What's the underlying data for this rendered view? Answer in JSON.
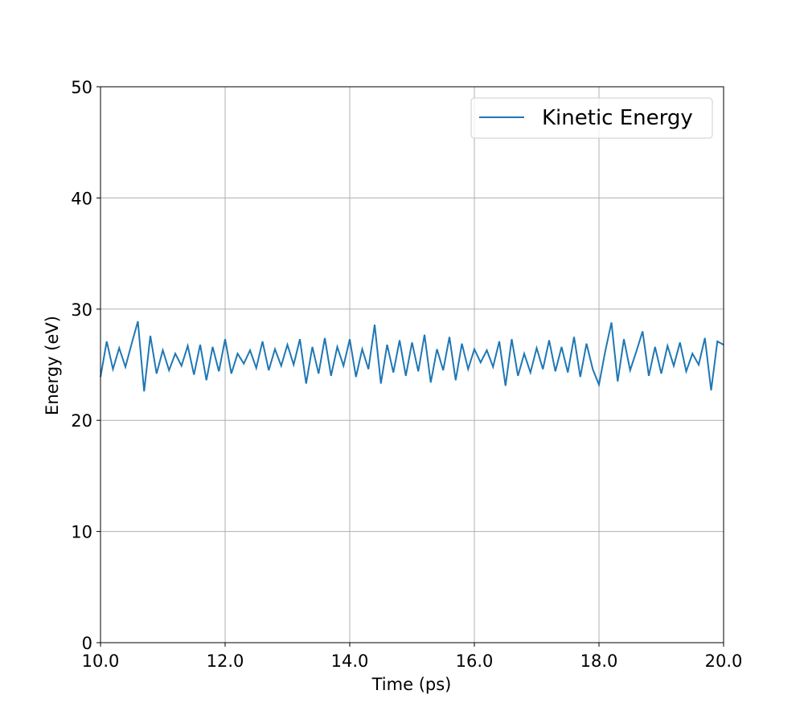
{
  "chart_data": {
    "type": "line",
    "xlabel": "Time (ps)",
    "ylabel": "Energy (eV)",
    "x": [
      10.0,
      10.1,
      10.2,
      10.3,
      10.4,
      10.5,
      10.6,
      10.7,
      10.8,
      10.9,
      11.0,
      11.1,
      11.2,
      11.3,
      11.4,
      11.5,
      11.6,
      11.7,
      11.8,
      11.9,
      12.0,
      12.1,
      12.2,
      12.3,
      12.4,
      12.5,
      12.6,
      12.7,
      12.8,
      12.9,
      13.0,
      13.1,
      13.2,
      13.3,
      13.4,
      13.5,
      13.6,
      13.7,
      13.8,
      13.9,
      14.0,
      14.1,
      14.2,
      14.3,
      14.4,
      14.5,
      14.6,
      14.7,
      14.8,
      14.9,
      15.0,
      15.1,
      15.2,
      15.3,
      15.4,
      15.5,
      15.6,
      15.7,
      15.8,
      15.9,
      16.0,
      16.1,
      16.2,
      16.3,
      16.4,
      16.5,
      16.6,
      16.7,
      16.8,
      16.9,
      17.0,
      17.1,
      17.2,
      17.3,
      17.4,
      17.5,
      17.6,
      17.7,
      17.8,
      17.9,
      18.0,
      18.1,
      18.2,
      18.3,
      18.4,
      18.5,
      18.6,
      18.7,
      18.8,
      18.9,
      19.0,
      19.1,
      19.2,
      19.3,
      19.4,
      19.5,
      19.6,
      19.7,
      19.8,
      19.9,
      20.0
    ],
    "series": [
      {
        "name": "Kinetic Energy",
        "color": "#1f77b4",
        "values": [
          23.9,
          27.1,
          24.6,
          26.5,
          24.8,
          26.9,
          28.9,
          22.6,
          27.6,
          24.2,
          26.3,
          24.5,
          26.0,
          24.9,
          26.7,
          24.1,
          26.8,
          23.6,
          26.6,
          24.4,
          27.3,
          24.2,
          26.0,
          25.1,
          26.3,
          24.7,
          27.1,
          24.5,
          26.4,
          24.9,
          26.8,
          25.0,
          27.3,
          23.3,
          26.6,
          24.2,
          27.4,
          24.0,
          26.6,
          24.9,
          27.3,
          23.9,
          26.4,
          24.6,
          28.6,
          23.3,
          26.8,
          24.3,
          27.2,
          24.0,
          27.0,
          24.4,
          27.7,
          23.4,
          26.4,
          24.5,
          27.5,
          23.6,
          26.9,
          24.6,
          26.4,
          25.2,
          26.3,
          24.8,
          27.1,
          23.1,
          27.3,
          24.0,
          26.0,
          24.3,
          26.5,
          24.6,
          27.2,
          24.4,
          26.6,
          24.3,
          27.5,
          23.9,
          26.9,
          24.6,
          23.2,
          26.2,
          28.8,
          23.5,
          27.3,
          24.5,
          26.2,
          28.0,
          24.0,
          26.6,
          24.2,
          26.7,
          24.9,
          27.0,
          24.4,
          26.0,
          25.0,
          27.4,
          22.7,
          27.1,
          26.8
        ]
      }
    ],
    "xlim": [
      10,
      20
    ],
    "xticks": [
      {
        "value": 10,
        "label": "10.0"
      },
      {
        "value": 12,
        "label": "12.0"
      },
      {
        "value": 14,
        "label": "14.0"
      },
      {
        "value": 16,
        "label": "16.0"
      },
      {
        "value": 18,
        "label": "18.0"
      },
      {
        "value": 20,
        "label": "20.0"
      }
    ],
    "ylim": [
      0,
      50
    ],
    "yticks": [
      0,
      10,
      20,
      30,
      40,
      50
    ],
    "grid": true,
    "legend": "upper right"
  }
}
